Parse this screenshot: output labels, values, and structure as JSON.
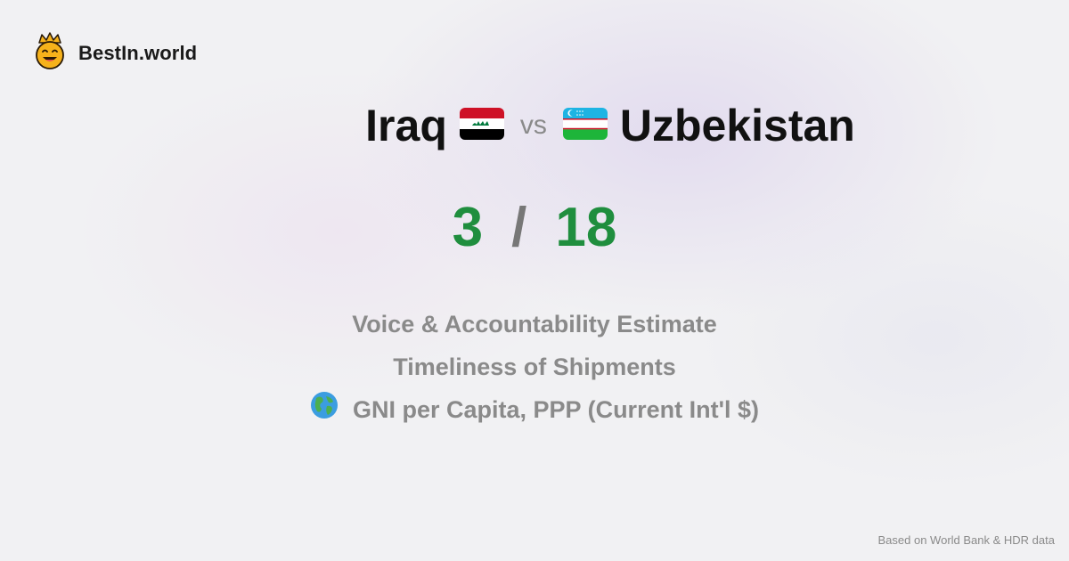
{
  "brand": {
    "name": "BestIn.world",
    "logo_icon": "crowned-smiley-icon"
  },
  "comparison": {
    "left_country": "Iraq",
    "left_flag": "iraq-flag-icon",
    "vs_label": "vs",
    "right_country": "Uzbekistan",
    "right_flag": "uzbekistan-flag-icon"
  },
  "score": {
    "left": "3",
    "separator": "/",
    "right": "18",
    "color": "#1f8e3e"
  },
  "metrics": [
    {
      "label": "Voice & Accountability Estimate",
      "icon": ""
    },
    {
      "label": "Timeliness of Shipments",
      "icon": ""
    },
    {
      "label": "GNI per Capita, PPP (Current Int'l $)",
      "icon": "globe-icon"
    }
  ],
  "footer": {
    "source": "Based on World Bank & HDR data"
  }
}
